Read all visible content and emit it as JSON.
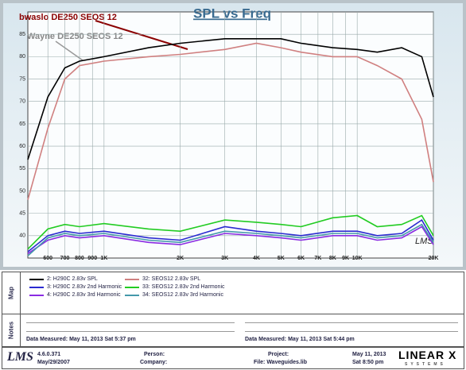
{
  "chart_data": {
    "type": "line",
    "title": "SPL vs Freq",
    "watermark": "LMS",
    "annotations": [
      {
        "text": "bwaslo DE250 SEOS 12",
        "color": "#8b0000"
      },
      {
        "text": "Wayne DE250 SEOS 12",
        "color": "#888888"
      }
    ],
    "xscale": "log",
    "grid": true,
    "x": [
      500,
      600,
      700,
      800,
      1000,
      1500,
      2000,
      3000,
      4000,
      5000,
      6000,
      8000,
      10000,
      12000,
      15000,
      18000,
      20000
    ],
    "xlim": [
      500,
      20000
    ],
    "xticks": [
      600,
      700,
      800,
      900,
      {
        "value": 1000,
        "label": "1K"
      },
      {
        "value": 2000,
        "label": "2K"
      },
      {
        "value": 3000,
        "label": "3K"
      },
      {
        "value": 4000,
        "label": "4K"
      },
      {
        "value": 5000,
        "label": "5K"
      },
      {
        "value": 6000,
        "label": "6K"
      },
      {
        "value": 7000,
        "label": "7K"
      },
      {
        "value": 8000,
        "label": "8K"
      },
      {
        "value": 9000,
        "label": "9K"
      },
      {
        "value": 10000,
        "label": "10K"
      },
      {
        "value": 20000,
        "label": "20K"
      }
    ],
    "ylim": [
      35,
      90
    ],
    "yticks": [
      40,
      45,
      50,
      55,
      60,
      65,
      70,
      75,
      80,
      85
    ],
    "series": [
      {
        "name": "2: H290C 2.83v SPL",
        "color": "#000000",
        "values": [
          57,
          71,
          77.5,
          79,
          80,
          82,
          83,
          84,
          84,
          84,
          83,
          82,
          81.6,
          81,
          82,
          80,
          71
        ]
      },
      {
        "name": "3: H290C 2.83v 2nd Harmonic",
        "color": "#2a2ad0",
        "values": [
          36.4,
          40,
          41,
          40.5,
          41,
          39.5,
          39,
          42,
          41,
          40.5,
          40,
          41,
          41,
          40,
          40.5,
          43.5,
          39
        ]
      },
      {
        "name": "4: H290C 2.83v 3rd Harmonic",
        "color": "#8a2be2",
        "values": [
          36,
          39,
          40,
          39.5,
          40,
          38.5,
          38,
          40.5,
          40,
          39.5,
          39,
          40,
          40,
          39,
          39.5,
          42,
          38
        ]
      },
      {
        "name": "32: SEOS12 2.83v SPL",
        "color": "#d08080",
        "values": [
          48,
          64,
          75,
          78,
          79,
          80,
          80.5,
          81.6,
          83,
          82,
          81,
          80,
          80,
          78,
          75,
          66,
          52
        ]
      },
      {
        "name": "33: SEOS12 2.83v 2nd Harmonic",
        "color": "#22cc22",
        "values": [
          37,
          41.5,
          42.5,
          42,
          42.7,
          41.5,
          41,
          43.5,
          43,
          42.5,
          42,
          44,
          44.5,
          42,
          42.5,
          44.5,
          40
        ]
      },
      {
        "name": "34: SEOS12 2.83v 3rd Harmonic",
        "color": "#4499aa",
        "values": [
          35.5,
          39.5,
          40.5,
          40,
          40.5,
          39,
          38.5,
          41,
          40.5,
          40,
          39.5,
          40.5,
          40.5,
          39.5,
          40,
          42.5,
          38.5
        ]
      }
    ]
  },
  "map": {
    "label": "Map"
  },
  "notes": {
    "label": "Notes",
    "measured": [
      "Data Measured: May 11, 2013  Sat  5:37 pm",
      "Data Measured: May 11, 2013  Sat  5:44 pm"
    ]
  },
  "footer": {
    "logo": "LMS",
    "version": "4.6.0.371",
    "date": "May/29/2007",
    "person": "Person:",
    "company": "Company:",
    "project": "Project:",
    "file": "File: Waveguides.lib",
    "print_date": "May 11, 2013",
    "print_time": "Sat  8:50 pm",
    "brand": "LINEAR X",
    "brand_sub": "SYSTEMS"
  }
}
